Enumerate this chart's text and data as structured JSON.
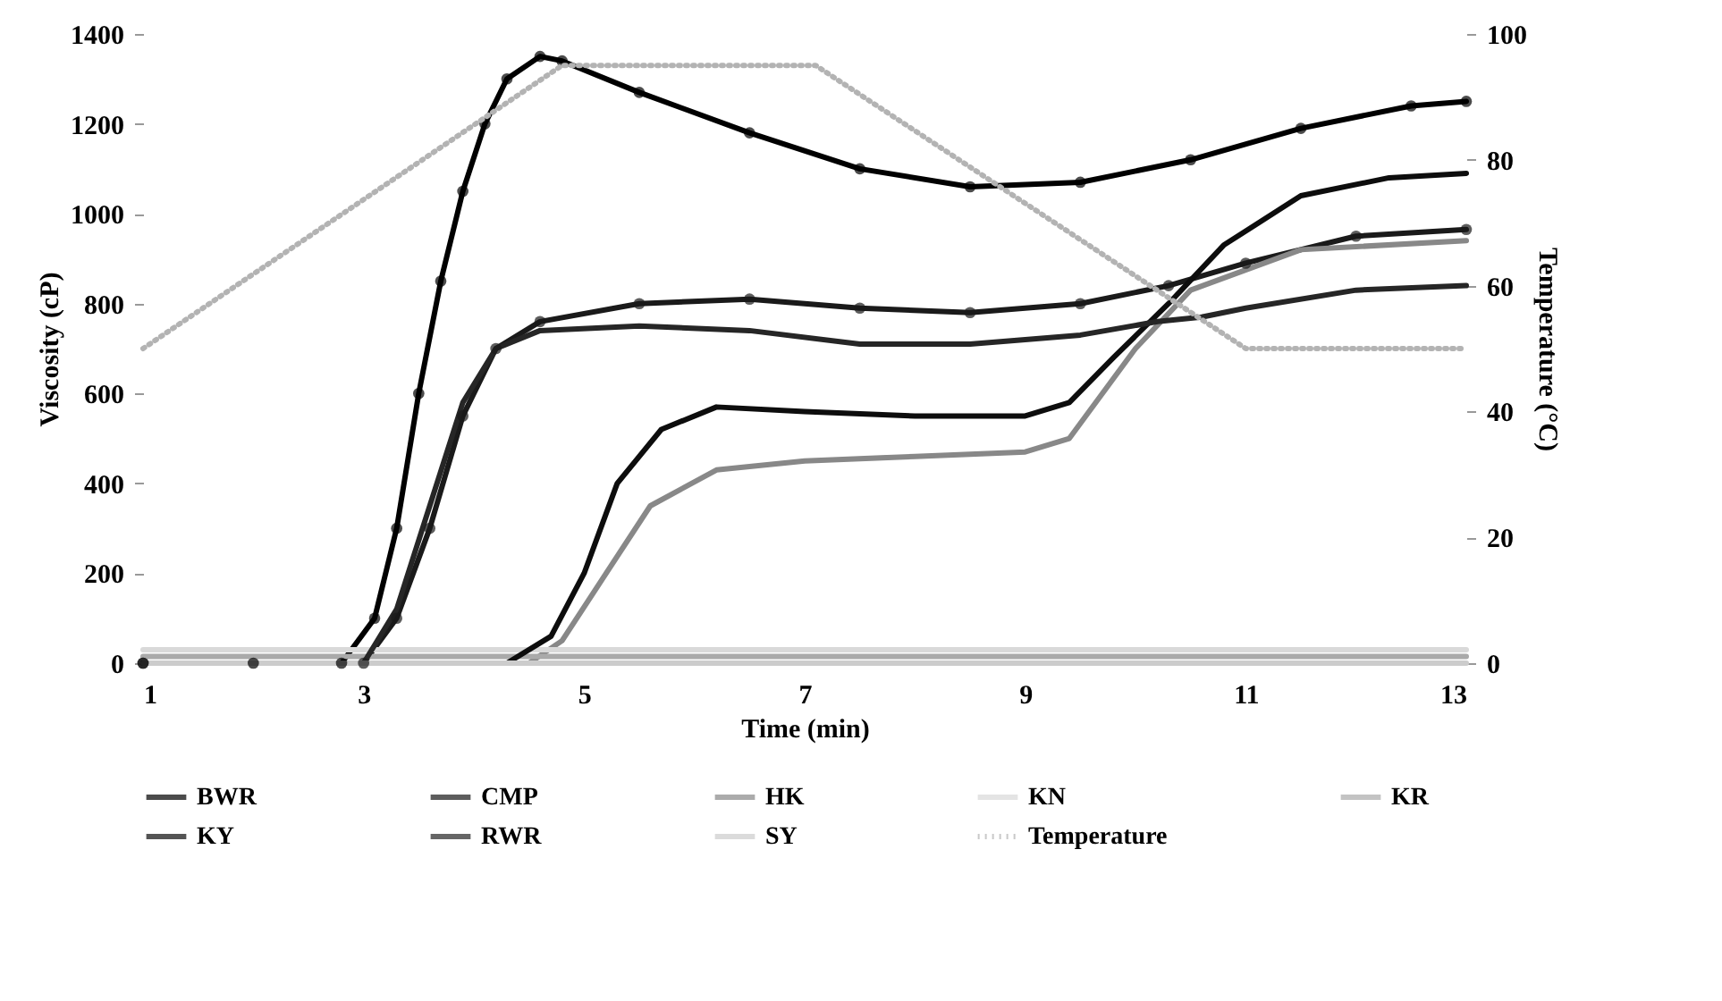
{
  "chart_data": {
    "type": "line",
    "xlabel": "Time (min)",
    "ylabel": "Viscosity (cP)",
    "y2label": "Temperature (°C)",
    "xlim": [
      1,
      13
    ],
    "xticks": [
      1,
      3,
      5,
      7,
      9,
      11,
      13
    ],
    "ylim": [
      0,
      1400
    ],
    "yticks": [
      0,
      200,
      400,
      600,
      800,
      1000,
      1200,
      1400
    ],
    "y2lim": [
      0,
      100
    ],
    "y2ticks": [
      0,
      20,
      40,
      60,
      80,
      100
    ],
    "grid": false,
    "legend": "bottom",
    "series": [
      {
        "name": "BWR",
        "color": "#000000",
        "marker": "circle",
        "x": [
          1,
          2,
          2.8,
          3.1,
          3.3,
          3.5,
          3.7,
          3.9,
          4.1,
          4.3,
          4.6,
          4.8,
          5.5,
          6.5,
          7.5,
          8.5,
          9.5,
          10.5,
          11.5,
          12.5,
          13
        ],
        "values": [
          0,
          0,
          0,
          100,
          300,
          600,
          850,
          1050,
          1200,
          1300,
          1350,
          1340,
          1270,
          1180,
          1100,
          1060,
          1070,
          1120,
          1190,
          1240,
          1250
        ]
      },
      {
        "name": "CMP",
        "color": "#1a1a1a",
        "marker": "circle",
        "x": [
          1,
          3,
          3.3,
          3.6,
          3.9,
          4.2,
          4.6,
          5.5,
          6.5,
          7.5,
          8.5,
          9.5,
          10.3,
          11,
          12,
          13
        ],
        "values": [
          0,
          0,
          100,
          300,
          550,
          700,
          760,
          800,
          810,
          790,
          780,
          800,
          840,
          890,
          950,
          965
        ]
      },
      {
        "name": "HK",
        "color": "#888888",
        "x": [
          1,
          4.5,
          4.8,
          5.2,
          5.6,
          6.2,
          7,
          8,
          9,
          9.4,
          10,
          10.5,
          11.5,
          13
        ],
        "values": [
          0,
          0,
          50,
          200,
          350,
          430,
          450,
          460,
          470,
          500,
          700,
          830,
          920,
          940
        ]
      },
      {
        "name": "KN",
        "color": "#d9d9d9",
        "x": [
          1,
          13
        ],
        "values": [
          30,
          30
        ]
      },
      {
        "name": "KR",
        "color": "#aaaaaa",
        "x": [
          1,
          13
        ],
        "values": [
          15,
          15
        ]
      },
      {
        "name": "KY",
        "color": "#0d0d0d",
        "x": [
          1,
          4.3,
          4.7,
          5,
          5.3,
          5.7,
          6.2,
          7,
          8,
          9,
          9.4,
          9.8,
          10.3,
          10.8,
          11.5,
          12.3,
          13
        ],
        "values": [
          0,
          0,
          60,
          200,
          400,
          520,
          570,
          560,
          550,
          550,
          580,
          680,
          800,
          930,
          1040,
          1080,
          1090
        ]
      },
      {
        "name": "RWR",
        "color": "#262626",
        "x": [
          1,
          3,
          3.3,
          3.6,
          3.9,
          4.2,
          4.6,
          5.5,
          6.5,
          7.5,
          8.5,
          9.5,
          10.2,
          10.6,
          11,
          12,
          13
        ],
        "values": [
          0,
          0,
          120,
          350,
          580,
          700,
          740,
          750,
          740,
          710,
          710,
          730,
          760,
          770,
          790,
          830,
          840
        ]
      },
      {
        "name": "SY",
        "color": "#cccccc",
        "x": [
          1,
          13
        ],
        "values": [
          0,
          0
        ]
      },
      {
        "name": "Temperature",
        "color": "#b3b3b3",
        "axis": "y2",
        "line_style": "dotted",
        "x": [
          1,
          4.8,
          7.1,
          11,
          13
        ],
        "values": [
          50,
          95,
          95,
          50,
          50
        ]
      }
    ]
  }
}
